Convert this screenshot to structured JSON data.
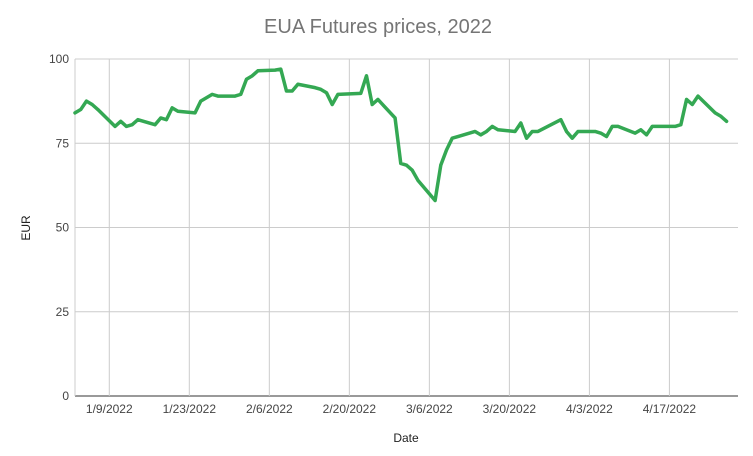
{
  "chart_data": {
    "type": "line",
    "title": "EUA Futures prices, 2022",
    "xlabel": "Date",
    "ylabel": "EUR",
    "ylim": [
      0,
      100
    ],
    "xlim": [
      "2022-01-03",
      "2022-04-29"
    ],
    "yticks": [
      0,
      25,
      50,
      75,
      100
    ],
    "xticks": [
      {
        "date": "2022-01-09",
        "label": "1/9/2022"
      },
      {
        "date": "2022-01-23",
        "label": "1/23/2022"
      },
      {
        "date": "2022-02-06",
        "label": "2/6/2022"
      },
      {
        "date": "2022-02-20",
        "label": "2/20/2022"
      },
      {
        "date": "2022-03-06",
        "label": "3/6/2022"
      },
      {
        "date": "2022-03-20",
        "label": "3/20/2022"
      },
      {
        "date": "2022-04-03",
        "label": "4/3/2022"
      },
      {
        "date": "2022-04-17",
        "label": "4/17/2022"
      }
    ],
    "grid": true,
    "legend": "none",
    "series": [
      {
        "color": "#34a853",
        "points": [
          [
            "2022-01-03",
            84.0
          ],
          [
            "2022-01-04",
            85.0
          ],
          [
            "2022-01-05",
            87.5
          ],
          [
            "2022-01-06",
            86.5
          ],
          [
            "2022-01-07",
            85.0
          ],
          [
            "2022-01-10",
            80.0
          ],
          [
            "2022-01-11",
            81.5
          ],
          [
            "2022-01-12",
            80.0
          ],
          [
            "2022-01-13",
            80.5
          ],
          [
            "2022-01-14",
            82.0
          ],
          [
            "2022-01-17",
            80.5
          ],
          [
            "2022-01-18",
            82.5
          ],
          [
            "2022-01-19",
            82.0
          ],
          [
            "2022-01-20",
            85.5
          ],
          [
            "2022-01-21",
            84.5
          ],
          [
            "2022-01-24",
            84.0
          ],
          [
            "2022-01-25",
            87.5
          ],
          [
            "2022-01-27",
            89.5
          ],
          [
            "2022-01-28",
            89.0
          ],
          [
            "2022-01-31",
            89.0
          ],
          [
            "2022-02-01",
            89.5
          ],
          [
            "2022-02-02",
            94.0
          ],
          [
            "2022-02-03",
            95.0
          ],
          [
            "2022-02-04",
            96.5
          ],
          [
            "2022-02-07",
            96.7
          ],
          [
            "2022-02-08",
            97.0
          ],
          [
            "2022-02-09",
            90.5
          ],
          [
            "2022-02-10",
            90.5
          ],
          [
            "2022-02-11",
            92.5
          ],
          [
            "2022-02-14",
            91.5
          ],
          [
            "2022-02-15",
            91.0
          ],
          [
            "2022-02-16",
            90.0
          ],
          [
            "2022-02-17",
            86.5
          ],
          [
            "2022-02-18",
            89.5
          ],
          [
            "2022-02-22",
            89.8
          ],
          [
            "2022-02-23",
            95.0
          ],
          [
            "2022-02-24",
            86.5
          ],
          [
            "2022-02-25",
            88.0
          ],
          [
            "2022-02-28",
            82.5
          ],
          [
            "2022-03-01",
            69.0
          ],
          [
            "2022-03-02",
            68.5
          ],
          [
            "2022-03-03",
            67.0
          ],
          [
            "2022-03-04",
            64.0
          ],
          [
            "2022-03-07",
            58.0
          ],
          [
            "2022-03-08",
            68.5
          ],
          [
            "2022-03-09",
            73.0
          ],
          [
            "2022-03-10",
            76.5
          ],
          [
            "2022-03-11",
            77.0
          ],
          [
            "2022-03-14",
            78.5
          ],
          [
            "2022-03-15",
            77.5
          ],
          [
            "2022-03-16",
            78.5
          ],
          [
            "2022-03-17",
            80.0
          ],
          [
            "2022-03-18",
            79.0
          ],
          [
            "2022-03-21",
            78.5
          ],
          [
            "2022-03-22",
            81.0
          ],
          [
            "2022-03-23",
            76.5
          ],
          [
            "2022-03-24",
            78.5
          ],
          [
            "2022-03-25",
            78.5
          ],
          [
            "2022-03-29",
            82.0
          ],
          [
            "2022-03-30",
            78.5
          ],
          [
            "2022-03-31",
            76.5
          ],
          [
            "2022-04-01",
            78.5
          ],
          [
            "2022-04-04",
            78.5
          ],
          [
            "2022-04-05",
            78.0
          ],
          [
            "2022-04-06",
            77.0
          ],
          [
            "2022-04-07",
            80.0
          ],
          [
            "2022-04-08",
            80.0
          ],
          [
            "2022-04-11",
            78.0
          ],
          [
            "2022-04-12",
            79.0
          ],
          [
            "2022-04-13",
            77.5
          ],
          [
            "2022-04-14",
            80.0
          ],
          [
            "2022-04-18",
            80.0
          ],
          [
            "2022-04-19",
            80.5
          ],
          [
            "2022-04-20",
            88.0
          ],
          [
            "2022-04-21",
            86.5
          ],
          [
            "2022-04-22",
            89.0
          ],
          [
            "2022-04-25",
            84.0
          ],
          [
            "2022-04-26",
            83.0
          ],
          [
            "2022-04-27",
            81.5
          ]
        ]
      }
    ]
  }
}
